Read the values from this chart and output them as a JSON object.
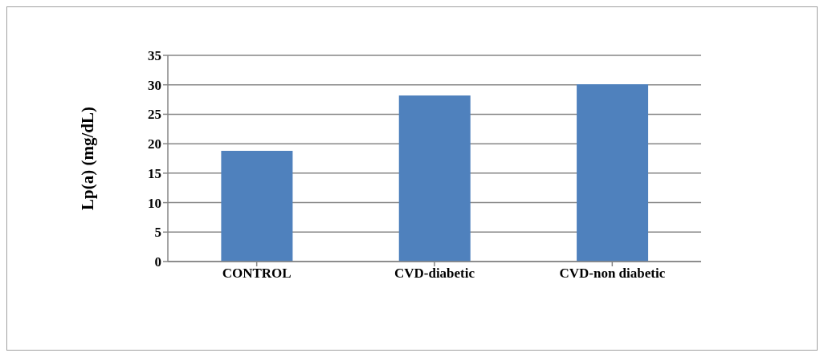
{
  "chart_data": {
    "type": "bar",
    "ylabel": "Lp(a) (mg/dL)",
    "categories": [
      "CONTROL",
      "CVD-diabetic",
      "CVD-non diabetic"
    ],
    "values": [
      18.8,
      28.2,
      30.1
    ],
    "color": "#4f81bd",
    "ylim": [
      0,
      35
    ],
    "yticks": [
      0,
      5,
      10,
      15,
      20,
      25,
      30,
      35
    ],
    "grid": "y"
  }
}
